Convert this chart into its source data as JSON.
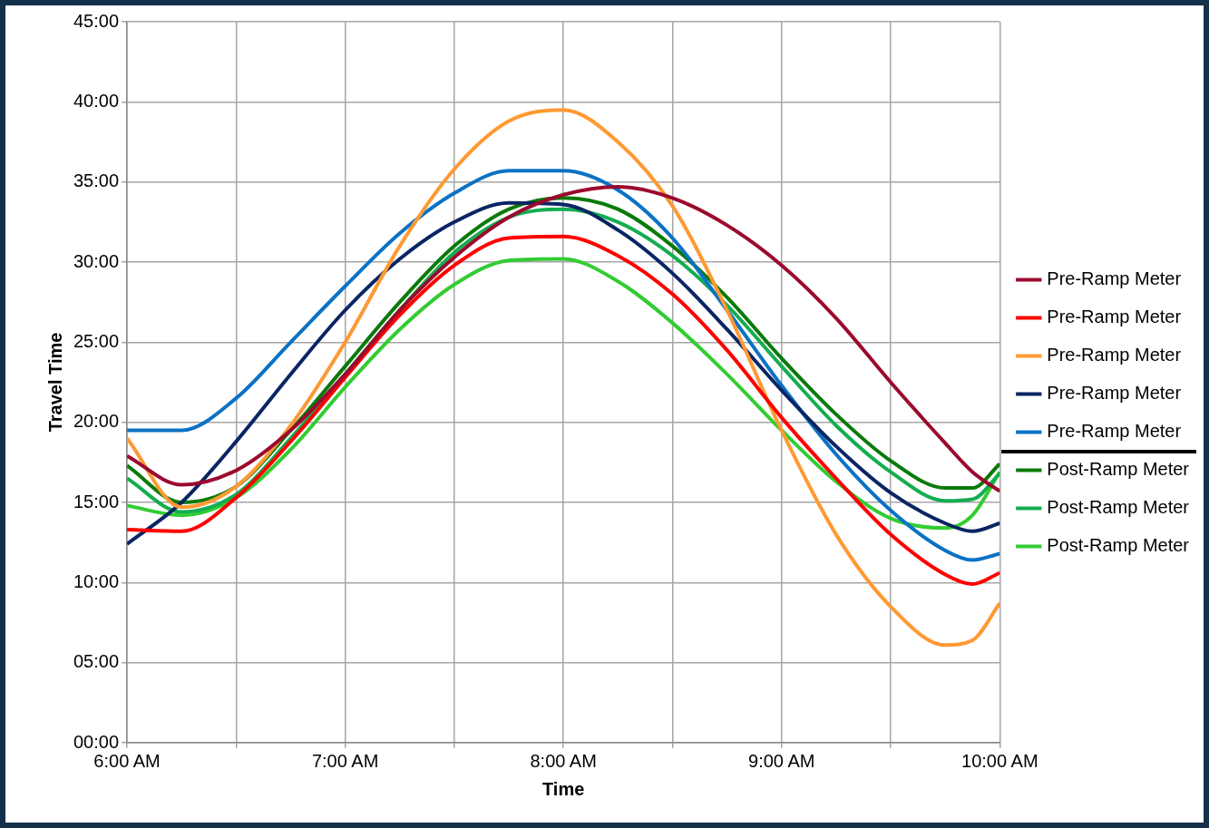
{
  "chart_data": {
    "type": "line",
    "xlabel": "Time",
    "ylabel": "Travel Time",
    "x": [
      6,
      6.25,
      6.5,
      6.75,
      7,
      7.25,
      7.5,
      7.75,
      8,
      8.25,
      8.5,
      8.75,
      9,
      9.25,
      9.5,
      9.75,
      9.875,
      10
    ],
    "series": [
      {
        "name": "Pre-Ramp Meter",
        "color": "#9b0a2e",
        "values": [
          17.9,
          16.1,
          17,
          19.5,
          23,
          27,
          30.3,
          32.8,
          34.2,
          34.7,
          34,
          32.3,
          29.8,
          26.5,
          22.5,
          18.7,
          16.9,
          15.7
        ]
      },
      {
        "name": "Pre-Ramp Meter",
        "color": "#ff0000",
        "values": [
          13.3,
          13.2,
          15.3,
          18.8,
          22.8,
          26.7,
          29.8,
          31.5,
          31.6,
          30.4,
          28,
          24.5,
          20.3,
          16.5,
          13,
          10.5,
          9.9,
          10.6
        ]
      },
      {
        "name": "Pre-Ramp Meter",
        "color": "#ff9933",
        "values": [
          19,
          14.7,
          16,
          19.8,
          25,
          31,
          35.8,
          38.8,
          39.5,
          37.5,
          33.5,
          27,
          19.5,
          13,
          8.5,
          6.1,
          6.4,
          8.7
        ]
      },
      {
        "name": "Pre-Ramp Meter",
        "color": "#0a2563",
        "values": [
          12.4,
          15,
          18.8,
          23,
          27,
          30.2,
          32.5,
          33.7,
          33.6,
          32,
          29.3,
          25.8,
          22,
          18.5,
          15.6,
          13.7,
          13.2,
          13.7
        ]
      },
      {
        "name": "Pre-Ramp Meter",
        "color": "#0b72c4",
        "values": [
          19.5,
          19.5,
          21.5,
          25,
          28.5,
          31.8,
          34.3,
          35.7,
          35.7,
          34.5,
          31.5,
          27,
          22.3,
          18,
          14.5,
          12,
          11.4,
          11.8
        ]
      },
      {
        "name": "Post-Ramp Meter",
        "color": "#0a7a0a",
        "values": [
          17.3,
          15,
          16,
          19.5,
          23.5,
          27.5,
          31,
          33.3,
          34,
          33.3,
          31,
          27.8,
          24,
          20.5,
          17.6,
          15.9,
          15.9,
          17.4
        ]
      },
      {
        "name": "Post-Ramp Meter",
        "color": "#14ad50",
        "values": [
          16.5,
          14.4,
          15.5,
          19,
          23,
          27,
          30.6,
          32.8,
          33.3,
          32.5,
          30.4,
          27.3,
          23.5,
          19.8,
          16.9,
          15.1,
          15.2,
          16.8
        ]
      },
      {
        "name": "Post-Ramp Meter",
        "color": "#33cc33",
        "values": [
          14.8,
          14.2,
          15.3,
          18.3,
          22.2,
          25.8,
          28.6,
          30.1,
          30.2,
          28.8,
          26.2,
          23,
          19.5,
          16.3,
          14,
          13.4,
          14.2,
          16.9
        ]
      }
    ],
    "xlim": [
      6,
      10
    ],
    "xticks": [
      {
        "value": 6,
        "label": "6:00 AM"
      },
      {
        "value": 6.5,
        "label": null
      },
      {
        "value": 7,
        "label": "7:00 AM"
      },
      {
        "value": 7.5,
        "label": null
      },
      {
        "value": 8,
        "label": "8:00 AM"
      },
      {
        "value": 8.5,
        "label": null
      },
      {
        "value": 9,
        "label": "9:00 AM"
      },
      {
        "value": 9.5,
        "label": null
      },
      {
        "value": 10,
        "label": "10:00 AM"
      }
    ],
    "ylim": [
      0,
      45
    ],
    "yticks": [
      {
        "value": 0,
        "label": "00:00"
      },
      {
        "value": 5,
        "label": "05:00"
      },
      {
        "value": 10,
        "label": "10:00"
      },
      {
        "value": 15,
        "label": "15:00"
      },
      {
        "value": 20,
        "label": "20:00"
      },
      {
        "value": 25,
        "label": "25:00"
      },
      {
        "value": 30,
        "label": "30:00"
      },
      {
        "value": 35,
        "label": "35:00"
      },
      {
        "value": 40,
        "label": "40:00"
      },
      {
        "value": 45,
        "label": "45:00"
      }
    ],
    "grid": true,
    "legend": "right",
    "marker": "none",
    "line_style": "solid"
  }
}
